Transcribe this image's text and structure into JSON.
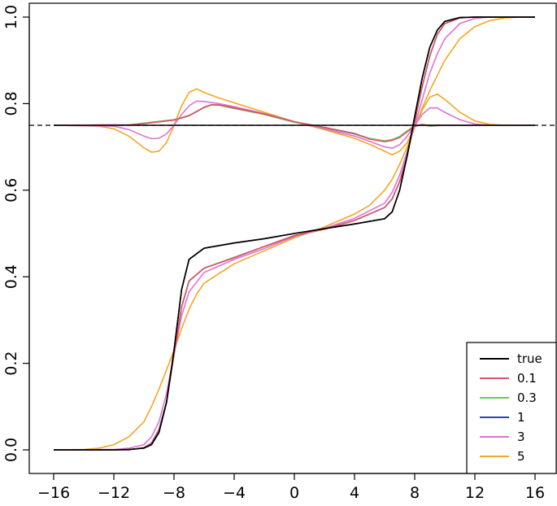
{
  "chart_data": {
    "type": "line",
    "title": "",
    "xlabel": "",
    "ylabel": "",
    "xlim": [
      -16,
      16
    ],
    "ylim": [
      0,
      1
    ],
    "xticks": [
      "−16",
      "−12",
      "−8",
      "−4",
      "0",
      "4",
      "8",
      "12",
      "16"
    ],
    "yticks": [
      "0.0",
      "0.2",
      "0.4",
      "0.6",
      "0.8",
      "1.0"
    ],
    "reference_line": {
      "y": 0.75,
      "style": "dashed",
      "color": "#000000"
    },
    "grid": false,
    "legend": {
      "placement": "bottom-right",
      "entries": [
        "true",
        "0.1",
        "0.3",
        "1",
        "3",
        "5"
      ]
    },
    "series": [
      {
        "name": "true",
        "color": "#000000",
        "cdf": [
          [
            -16,
            0
          ],
          [
            -12,
            0
          ],
          [
            -11,
            0.001
          ],
          [
            -10,
            0.004
          ],
          [
            -9.5,
            0.012
          ],
          [
            -9,
            0.04
          ],
          [
            -8.5,
            0.11
          ],
          [
            -8,
            0.23
          ],
          [
            -7.5,
            0.37
          ],
          [
            -7,
            0.44
          ],
          [
            -6,
            0.466
          ],
          [
            -4,
            0.478
          ],
          [
            -2,
            0.488
          ],
          [
            0,
            0.5
          ],
          [
            2,
            0.511
          ],
          [
            4,
            0.522
          ],
          [
            6,
            0.534
          ],
          [
            6.5,
            0.55
          ],
          [
            7,
            0.6
          ],
          [
            7.5,
            0.68
          ],
          [
            8,
            0.77
          ],
          [
            8.5,
            0.86
          ],
          [
            9,
            0.93
          ],
          [
            9.5,
            0.97
          ],
          [
            10,
            0.99
          ],
          [
            11,
            0.999
          ],
          [
            12,
            1
          ],
          [
            16,
            1
          ]
        ],
        "ratio": [
          [
            -16,
            0.75
          ],
          [
            16,
            0.75
          ]
        ]
      },
      {
        "name": "0.1",
        "color": "#DF536B",
        "cdf": [
          [
            -16,
            0
          ],
          [
            -11,
            0
          ],
          [
            -10,
            0.005
          ],
          [
            -9.5,
            0.015
          ],
          [
            -9,
            0.045
          ],
          [
            -8.5,
            0.11
          ],
          [
            -8,
            0.22
          ],
          [
            -7.5,
            0.33
          ],
          [
            -7,
            0.39
          ],
          [
            -6,
            0.42
          ],
          [
            -4,
            0.444
          ],
          [
            -2,
            0.47
          ],
          [
            0,
            0.495
          ],
          [
            2,
            0.51
          ],
          [
            4,
            0.53
          ],
          [
            6,
            0.56
          ],
          [
            6.5,
            0.58
          ],
          [
            7,
            0.62
          ],
          [
            7.5,
            0.68
          ],
          [
            8,
            0.76
          ],
          [
            8.5,
            0.84
          ],
          [
            9,
            0.91
          ],
          [
            9.5,
            0.96
          ],
          [
            10,
            0.985
          ],
          [
            11,
            0.998
          ],
          [
            12,
            1
          ],
          [
            16,
            1
          ]
        ],
        "ratio": [
          [
            -16,
            0.75
          ],
          [
            -11,
            0.751
          ],
          [
            -10,
            0.754
          ],
          [
            -9,
            0.758
          ],
          [
            -8,
            0.762
          ],
          [
            -7,
            0.772
          ],
          [
            -6,
            0.792
          ],
          [
            -5.5,
            0.798
          ],
          [
            -5,
            0.797
          ],
          [
            -4,
            0.79
          ],
          [
            -2,
            0.776
          ],
          [
            0,
            0.758
          ],
          [
            2,
            0.745
          ],
          [
            4,
            0.73
          ],
          [
            5,
            0.718
          ],
          [
            6,
            0.712
          ],
          [
            6.5,
            0.715
          ],
          [
            7,
            0.722
          ],
          [
            7.5,
            0.735
          ],
          [
            8,
            0.748
          ],
          [
            8.5,
            0.752
          ],
          [
            9,
            0.749
          ],
          [
            10,
            0.75
          ],
          [
            16,
            0.75
          ]
        ]
      },
      {
        "name": "0.3",
        "color": "#61D04F",
        "cdf": [
          [
            -16,
            0
          ],
          [
            -11,
            0
          ],
          [
            -10,
            0.005
          ],
          [
            -9.5,
            0.015
          ],
          [
            -9,
            0.046
          ],
          [
            -8.5,
            0.11
          ],
          [
            -8,
            0.22
          ],
          [
            -7.5,
            0.33
          ],
          [
            -7,
            0.39
          ],
          [
            -6,
            0.42
          ],
          [
            -4,
            0.445
          ],
          [
            -2,
            0.47
          ],
          [
            0,
            0.495
          ],
          [
            2,
            0.51
          ],
          [
            4,
            0.53
          ],
          [
            6,
            0.56
          ],
          [
            6.5,
            0.58
          ],
          [
            7,
            0.62
          ],
          [
            7.5,
            0.68
          ],
          [
            8,
            0.76
          ],
          [
            8.5,
            0.84
          ],
          [
            9,
            0.91
          ],
          [
            9.5,
            0.96
          ],
          [
            10,
            0.985
          ],
          [
            11,
            0.998
          ],
          [
            12,
            1
          ],
          [
            16,
            1
          ]
        ],
        "ratio": [
          [
            -16,
            0.75
          ],
          [
            -11,
            0.751
          ],
          [
            -10,
            0.755
          ],
          [
            -9,
            0.759
          ],
          [
            -8,
            0.763
          ],
          [
            -7,
            0.773
          ],
          [
            -6,
            0.791
          ],
          [
            -5.5,
            0.797
          ],
          [
            -5,
            0.796
          ],
          [
            -4,
            0.789
          ],
          [
            -2,
            0.775
          ],
          [
            0,
            0.757
          ],
          [
            2,
            0.744
          ],
          [
            4,
            0.73
          ],
          [
            5,
            0.72
          ],
          [
            6,
            0.714
          ],
          [
            6.5,
            0.717
          ],
          [
            7,
            0.724
          ],
          [
            7.5,
            0.737
          ],
          [
            8,
            0.749
          ],
          [
            8.5,
            0.751
          ],
          [
            9,
            0.748
          ],
          [
            10,
            0.75
          ],
          [
            16,
            0.75
          ]
        ]
      },
      {
        "name": "1",
        "color": "#2E40B8",
        "cdf": [
          [
            -16,
            0
          ],
          [
            -11,
            0
          ],
          [
            -10,
            0.005
          ],
          [
            -9.5,
            0.016
          ],
          [
            -9,
            0.047
          ],
          [
            -8.5,
            0.11
          ],
          [
            -8,
            0.22
          ],
          [
            -7.5,
            0.33
          ],
          [
            -7,
            0.39
          ],
          [
            -6,
            0.42
          ],
          [
            -4,
            0.444
          ],
          [
            -2,
            0.47
          ],
          [
            0,
            0.495
          ],
          [
            2,
            0.51
          ],
          [
            4,
            0.53
          ],
          [
            6,
            0.56
          ],
          [
            6.5,
            0.58
          ],
          [
            7,
            0.62
          ],
          [
            7.5,
            0.68
          ],
          [
            8,
            0.76
          ],
          [
            8.5,
            0.84
          ],
          [
            9,
            0.91
          ],
          [
            9.5,
            0.96
          ],
          [
            10,
            0.985
          ],
          [
            11,
            0.998
          ],
          [
            12,
            1
          ],
          [
            16,
            1
          ]
        ],
        "ratio": [
          [
            -16,
            0.75
          ],
          [
            -11,
            0.751
          ],
          [
            -10,
            0.754
          ],
          [
            -9,
            0.758
          ],
          [
            -8,
            0.762
          ],
          [
            -7,
            0.772
          ],
          [
            -6,
            0.791
          ],
          [
            -5.5,
            0.797
          ],
          [
            -5,
            0.797
          ],
          [
            -4,
            0.79
          ],
          [
            -2,
            0.776
          ],
          [
            0,
            0.758
          ],
          [
            2,
            0.745
          ],
          [
            4,
            0.731
          ],
          [
            5,
            0.719
          ],
          [
            6,
            0.713
          ],
          [
            6.5,
            0.716
          ],
          [
            7,
            0.723
          ],
          [
            7.5,
            0.736
          ],
          [
            8,
            0.748
          ],
          [
            8.5,
            0.751
          ],
          [
            9,
            0.75
          ],
          [
            10,
            0.75
          ],
          [
            16,
            0.75
          ]
        ]
      },
      {
        "name": "3",
        "color": "#DF72D8",
        "cdf": [
          [
            -16,
            0
          ],
          [
            -12,
            0.001
          ],
          [
            -11,
            0.004
          ],
          [
            -10,
            0.012
          ],
          [
            -9.5,
            0.03
          ],
          [
            -9,
            0.065
          ],
          [
            -8.5,
            0.13
          ],
          [
            -8,
            0.22
          ],
          [
            -7.5,
            0.31
          ],
          [
            -7,
            0.365
          ],
          [
            -6,
            0.41
          ],
          [
            -4,
            0.44
          ],
          [
            -2,
            0.465
          ],
          [
            0,
            0.493
          ],
          [
            2,
            0.512
          ],
          [
            4,
            0.535
          ],
          [
            6,
            0.57
          ],
          [
            6.5,
            0.595
          ],
          [
            7,
            0.635
          ],
          [
            7.5,
            0.69
          ],
          [
            8,
            0.75
          ],
          [
            8.5,
            0.81
          ],
          [
            9,
            0.87
          ],
          [
            9.5,
            0.915
          ],
          [
            10,
            0.95
          ],
          [
            11,
            0.985
          ],
          [
            12,
            0.997
          ],
          [
            13,
            1
          ],
          [
            16,
            1
          ]
        ],
        "ratio": [
          [
            -16,
            0.75
          ],
          [
            -12,
            0.748
          ],
          [
            -11,
            0.74
          ],
          [
            -10,
            0.725
          ],
          [
            -9.5,
            0.719
          ],
          [
            -9,
            0.72
          ],
          [
            -8.5,
            0.73
          ],
          [
            -8,
            0.75
          ],
          [
            -7.5,
            0.775
          ],
          [
            -7,
            0.795
          ],
          [
            -6.5,
            0.806
          ],
          [
            -6,
            0.805
          ],
          [
            -5,
            0.8
          ],
          [
            -4,
            0.793
          ],
          [
            -2,
            0.777
          ],
          [
            0,
            0.758
          ],
          [
            2,
            0.742
          ],
          [
            4,
            0.725
          ],
          [
            5,
            0.713
          ],
          [
            6,
            0.7
          ],
          [
            6.5,
            0.697
          ],
          [
            7,
            0.705
          ],
          [
            7.5,
            0.725
          ],
          [
            8,
            0.75
          ],
          [
            8.5,
            0.775
          ],
          [
            9,
            0.79
          ],
          [
            9.5,
            0.79
          ],
          [
            10,
            0.78
          ],
          [
            11,
            0.763
          ],
          [
            12,
            0.753
          ],
          [
            13,
            0.75
          ],
          [
            16,
            0.75
          ]
        ]
      },
      {
        "name": "5",
        "color": "#F5A623",
        "cdf": [
          [
            -16,
            0
          ],
          [
            -14,
            0.001
          ],
          [
            -13,
            0.004
          ],
          [
            -12,
            0.012
          ],
          [
            -11,
            0.03
          ],
          [
            -10,
            0.065
          ],
          [
            -9.5,
            0.1
          ],
          [
            -9,
            0.14
          ],
          [
            -8.5,
            0.185
          ],
          [
            -8,
            0.23
          ],
          [
            -7.5,
            0.28
          ],
          [
            -7,
            0.325
          ],
          [
            -6.5,
            0.36
          ],
          [
            -6,
            0.385
          ],
          [
            -4,
            0.43
          ],
          [
            -2,
            0.46
          ],
          [
            0,
            0.49
          ],
          [
            2,
            0.515
          ],
          [
            4,
            0.545
          ],
          [
            5,
            0.565
          ],
          [
            6,
            0.6
          ],
          [
            6.5,
            0.625
          ],
          [
            7,
            0.66
          ],
          [
            7.5,
            0.7
          ],
          [
            8,
            0.745
          ],
          [
            8.5,
            0.79
          ],
          [
            9,
            0.83
          ],
          [
            10,
            0.9
          ],
          [
            11,
            0.95
          ],
          [
            12,
            0.978
          ],
          [
            13,
            0.992
          ],
          [
            14,
            0.998
          ],
          [
            15,
            1
          ],
          [
            16,
            1
          ]
        ],
        "ratio": [
          [
            -16,
            0.75
          ],
          [
            -13,
            0.748
          ],
          [
            -12,
            0.742
          ],
          [
            -11,
            0.725
          ],
          [
            -10,
            0.698
          ],
          [
            -9.5,
            0.688
          ],
          [
            -9,
            0.69
          ],
          [
            -8.5,
            0.71
          ],
          [
            -8,
            0.75
          ],
          [
            -7.5,
            0.795
          ],
          [
            -7,
            0.826
          ],
          [
            -6.5,
            0.834
          ],
          [
            -6,
            0.826
          ],
          [
            -5,
            0.813
          ],
          [
            -4,
            0.802
          ],
          [
            -2,
            0.78
          ],
          [
            0,
            0.758
          ],
          [
            2,
            0.74
          ],
          [
            4,
            0.72
          ],
          [
            5,
            0.706
          ],
          [
            6,
            0.69
          ],
          [
            6.5,
            0.682
          ],
          [
            7,
            0.69
          ],
          [
            7.5,
            0.71
          ],
          [
            8,
            0.745
          ],
          [
            8.5,
            0.785
          ],
          [
            9,
            0.815
          ],
          [
            9.5,
            0.822
          ],
          [
            10,
            0.81
          ],
          [
            11,
            0.78
          ],
          [
            12,
            0.76
          ],
          [
            13,
            0.752
          ],
          [
            14,
            0.75
          ],
          [
            16,
            0.75
          ]
        ]
      }
    ]
  }
}
